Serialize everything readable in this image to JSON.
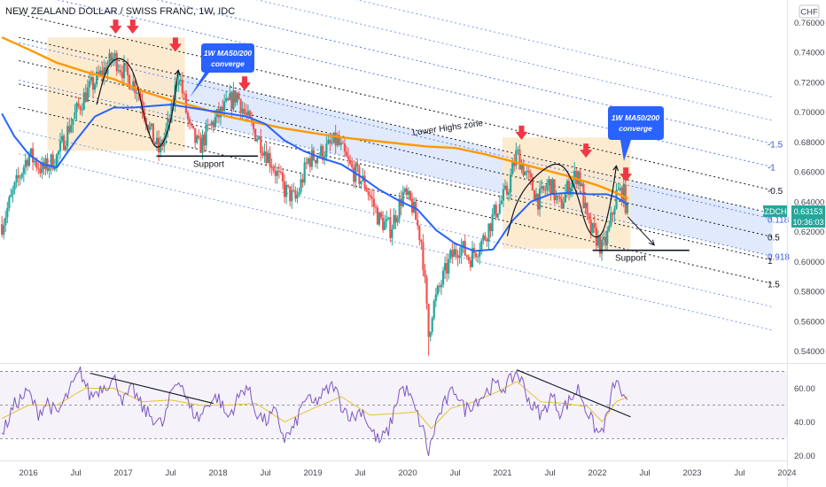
{
  "header": {
    "title": "NEW ZEALAND DOLLAR / SWISS FRANC, 1W, IDC",
    "currency": "CHF"
  },
  "price_badge": {
    "symbol": "NZDCHF",
    "price": "0.63153",
    "countdown": "10:36:03",
    "color": "#26a69a"
  },
  "colors": {
    "up_candle": "#26a69a",
    "down_candle": "#ef5350",
    "ma50": "#2962ff",
    "ma200": "#ff9800",
    "rsi_line": "#7e57c2",
    "rsi_signal": "#e5c32f",
    "arrow": "#f23645",
    "callout": "#2962ff",
    "channel_fill": "#dbe6fb",
    "zone_fill": "#fde7c8"
  },
  "annotations": {
    "callout_left": [
      "1W MA50/200",
      "converge"
    ],
    "callout_right": [
      "1W MA50/200",
      "converge"
    ],
    "support_left": "Support",
    "support_right": "Support",
    "lower_highs": "Lower Highs zone"
  },
  "chart_data": [
    {
      "type": "candlestick",
      "panel": "price",
      "title": "NEW ZEALAND DOLLAR / SWISS FRANC, 1W, IDC",
      "unit": "CHF",
      "ylim": [
        0.535,
        0.775
      ],
      "yticks": [
        "0.76000",
        "0.74000",
        "0.72000",
        "0.70000",
        "0.68000",
        "0.66000",
        "0.64000",
        "0.62000",
        "0.60000",
        "0.58000",
        "0.56000",
        "0.54000"
      ],
      "xlim": [
        2015.7,
        2024.0
      ],
      "xticks": [
        {
          "label": "2016",
          "x": 2016.0
        },
        {
          "label": "Jul",
          "x": 2016.5
        },
        {
          "label": "2017",
          "x": 2017.0
        },
        {
          "label": "Jul",
          "x": 2017.5
        },
        {
          "label": "2018",
          "x": 2018.0
        },
        {
          "label": "Jul",
          "x": 2018.5
        },
        {
          "label": "2019",
          "x": 2019.0
        },
        {
          "label": "Jul",
          "x": 2019.5
        },
        {
          "label": "2020",
          "x": 2020.0
        },
        {
          "label": "Jul",
          "x": 2020.5
        },
        {
          "label": "2021",
          "x": 2021.0
        },
        {
          "label": "Jul",
          "x": 2021.5
        },
        {
          "label": "2022",
          "x": 2022.0
        },
        {
          "label": "Jul",
          "x": 2022.5
        },
        {
          "label": "2023",
          "x": 2023.0
        },
        {
          "label": "Jul",
          "x": 2023.5
        },
        {
          "label": "2024",
          "x": 2024.0
        }
      ],
      "price_path": [
        [
          2015.72,
          0.625
        ],
        [
          2015.85,
          0.648
        ],
        [
          2016.0,
          0.672
        ],
        [
          2016.15,
          0.661
        ],
        [
          2016.3,
          0.67
        ],
        [
          2016.45,
          0.693
        ],
        [
          2016.6,
          0.712
        ],
        [
          2016.75,
          0.724
        ],
        [
          2016.9,
          0.737
        ],
        [
          2017.05,
          0.723
        ],
        [
          2017.15,
          0.716
        ],
        [
          2017.28,
          0.688
        ],
        [
          2017.38,
          0.673
        ],
        [
          2017.5,
          0.696
        ],
        [
          2017.58,
          0.728
        ],
        [
          2017.7,
          0.688
        ],
        [
          2017.8,
          0.676
        ],
        [
          2017.92,
          0.691
        ],
        [
          2018.05,
          0.701
        ],
        [
          2018.2,
          0.712
        ],
        [
          2018.3,
          0.696
        ],
        [
          2018.42,
          0.683
        ],
        [
          2018.55,
          0.668
        ],
        [
          2018.7,
          0.648
        ],
        [
          2018.82,
          0.641
        ],
        [
          2018.95,
          0.668
        ],
        [
          2019.1,
          0.673
        ],
        [
          2019.25,
          0.681
        ],
        [
          2019.4,
          0.662
        ],
        [
          2019.55,
          0.652
        ],
        [
          2019.7,
          0.628
        ],
        [
          2019.82,
          0.622
        ],
        [
          2019.95,
          0.645
        ],
        [
          2020.05,
          0.637
        ],
        [
          2020.15,
          0.612
        ],
        [
          2020.22,
          0.55
        ],
        [
          2020.26,
          0.568
        ],
        [
          2020.35,
          0.585
        ],
        [
          2020.45,
          0.602
        ],
        [
          2020.55,
          0.611
        ],
        [
          2020.65,
          0.602
        ],
        [
          2020.8,
          0.615
        ],
        [
          2020.92,
          0.633
        ],
        [
          2021.05,
          0.647
        ],
        [
          2021.15,
          0.673
        ],
        [
          2021.25,
          0.658
        ],
        [
          2021.38,
          0.641
        ],
        [
          2021.5,
          0.653
        ],
        [
          2021.6,
          0.636
        ],
        [
          2021.7,
          0.651
        ],
        [
          2021.8,
          0.66
        ],
        [
          2021.9,
          0.624
        ],
        [
          2022.0,
          0.615
        ],
        [
          2022.05,
          0.608
        ],
        [
          2022.12,
          0.62
        ],
        [
          2022.2,
          0.645
        ],
        [
          2022.27,
          0.647
        ],
        [
          2022.32,
          0.632
        ]
      ],
      "lows": [
        {
          "x": 2020.22,
          "y": 0.537
        }
      ],
      "ma50_path": [
        [
          2015.72,
          0.699
        ],
        [
          2015.85,
          0.684
        ],
        [
          2016.0,
          0.672
        ],
        [
          2016.15,
          0.665
        ],
        [
          2016.3,
          0.663
        ],
        [
          2016.5,
          0.681
        ],
        [
          2016.7,
          0.697
        ],
        [
          2016.9,
          0.703
        ],
        [
          2017.1,
          0.703
        ],
        [
          2017.3,
          0.704
        ],
        [
          2017.5,
          0.705
        ],
        [
          2017.7,
          0.703
        ],
        [
          2017.9,
          0.701
        ],
        [
          2018.1,
          0.699
        ],
        [
          2018.3,
          0.697
        ],
        [
          2018.5,
          0.692
        ],
        [
          2018.7,
          0.681
        ],
        [
          2018.9,
          0.674
        ],
        [
          2019.1,
          0.669
        ],
        [
          2019.3,
          0.665
        ],
        [
          2019.5,
          0.657
        ],
        [
          2019.7,
          0.648
        ],
        [
          2019.9,
          0.641
        ],
        [
          2020.1,
          0.635
        ],
        [
          2020.3,
          0.621
        ],
        [
          2020.5,
          0.612
        ],
        [
          2020.7,
          0.607
        ],
        [
          2020.9,
          0.608
        ],
        [
          2021.1,
          0.627
        ],
        [
          2021.3,
          0.64
        ],
        [
          2021.5,
          0.645
        ],
        [
          2021.7,
          0.646
        ],
        [
          2021.9,
          0.645
        ],
        [
          2022.1,
          0.645
        ],
        [
          2022.2,
          0.643
        ],
        [
          2022.32,
          0.638
        ]
      ],
      "ma200_path": [
        [
          2015.72,
          0.75
        ],
        [
          2016.0,
          0.742
        ],
        [
          2016.3,
          0.733
        ],
        [
          2016.6,
          0.727
        ],
        [
          2016.9,
          0.722
        ],
        [
          2017.2,
          0.714
        ],
        [
          2017.5,
          0.708
        ],
        [
          2017.8,
          0.703
        ],
        [
          2018.1,
          0.697
        ],
        [
          2018.4,
          0.693
        ],
        [
          2018.7,
          0.689
        ],
        [
          2019.0,
          0.686
        ],
        [
          2019.3,
          0.683
        ],
        [
          2019.6,
          0.681
        ],
        [
          2019.9,
          0.679
        ],
        [
          2020.2,
          0.677
        ],
        [
          2020.5,
          0.676
        ],
        [
          2020.8,
          0.672
        ],
        [
          2021.1,
          0.667
        ],
        [
          2021.4,
          0.662
        ],
        [
          2021.7,
          0.657
        ],
        [
          2022.0,
          0.651
        ],
        [
          2022.2,
          0.646
        ],
        [
          2022.32,
          0.642
        ]
      ],
      "fib_channel": {
        "anchor_x": [
          2015.9,
          2023.85
        ],
        "base_line": [
          0.75,
          0.632
        ],
        "spacing": 0.0312,
        "levels": [
          {
            "level": -2.5,
            "label": "",
            "color": "#7b9af2",
            "dash": "2,3"
          },
          {
            "level": -2.0,
            "label": "",
            "color": "#7b9af2",
            "dash": "2,3"
          },
          {
            "level": -1.5,
            "label": "-1.5",
            "color": "#5b7bea",
            "dash": "2,3"
          },
          {
            "level": -1.0,
            "label": "-1",
            "color": "#5b7bea",
            "dash": "2,3"
          },
          {
            "level": -0.5,
            "label": "-0.5",
            "color": "#131722",
            "dash": "2,3"
          },
          {
            "level": 0.0,
            "label": "0",
            "color": "#131722",
            "dash": "2,3"
          },
          {
            "level": 0.118,
            "label": "0.118",
            "color": "#5b7bea",
            "dash": "2,3"
          },
          {
            "level": 0.5,
            "label": "0.5",
            "color": "#131722",
            "dash": "2,3"
          },
          {
            "level": 0.918,
            "label": "0.918",
            "color": "#5b7bea",
            "dash": "2,3"
          },
          {
            "level": 1.0,
            "label": "1",
            "color": "#131722",
            "dash": "2,3"
          },
          {
            "level": 1.5,
            "label": "1.5",
            "color": "#131722",
            "dash": "2,3"
          },
          {
            "level": 2.0,
            "label": "",
            "color": "#7b9af2",
            "dash": "2,3"
          },
          {
            "level": 2.5,
            "label": "",
            "color": "#7b9af2",
            "dash": "2,3"
          }
        ],
        "fill_from": 0.0,
        "fill_to": 0.918
      },
      "zones": [
        {
          "x": [
            2016.2,
            2017.65
          ],
          "y": [
            0.674,
            0.75
          ]
        },
        {
          "x": [
            2021.0,
            2022.35
          ],
          "y": [
            0.6085,
            0.683
          ]
        }
      ],
      "support_lines": [
        {
          "x": [
            2017.35,
            2018.42
          ],
          "y": 0.6705,
          "label_x": 2017.9
        },
        {
          "x": [
            2021.95,
            2022.97
          ],
          "y": 0.6075,
          "label_x": 2022.35
        }
      ],
      "red_arrows": [
        [
          2016.92,
          0.756
        ],
        [
          2017.1,
          0.756
        ],
        [
          2017.55,
          0.744
        ],
        [
          2018.28,
          0.718
        ],
        [
          2021.2,
          0.685
        ],
        [
          2021.88,
          0.673
        ],
        [
          2022.3,
          0.657
        ]
      ],
      "arcs": [
        [
          [
            2016.72,
            0.705
          ],
          [
            2016.82,
            0.73
          ],
          [
            2016.96,
            0.738
          ],
          [
            2017.12,
            0.728
          ],
          [
            2017.24,
            0.69
          ],
          [
            2017.36,
            0.672
          ],
          [
            2017.5,
            0.69
          ],
          [
            2017.58,
            0.728
          ]
        ],
        [
          [
            2021.05,
            0.617
          ],
          [
            2021.15,
            0.642
          ],
          [
            2021.38,
            0.66
          ],
          [
            2021.62,
            0.668
          ],
          [
            2021.78,
            0.648
          ],
          [
            2021.9,
            0.618
          ],
          [
            2022.05,
            0.615
          ],
          [
            2022.15,
            0.642
          ],
          [
            2022.2,
            0.664
          ]
        ]
      ],
      "projection": {
        "from": [
          2022.32,
          0.63
        ],
        "to": [
          2022.6,
          0.611
        ]
      }
    },
    {
      "type": "line",
      "panel": "rsi",
      "ylim": [
        17,
        74
      ],
      "yticks": [
        "60.00",
        "40.00",
        "20.00"
      ],
      "bands": {
        "upper": 70,
        "mid": 50,
        "lower": 30
      },
      "rsi_path": [
        [
          2015.72,
          32
        ],
        [
          2015.85,
          50
        ],
        [
          2016.0,
          58
        ],
        [
          2016.1,
          45
        ],
        [
          2016.2,
          52
        ],
        [
          2016.3,
          44
        ],
        [
          2016.45,
          60
        ],
        [
          2016.55,
          70
        ],
        [
          2016.65,
          55
        ],
        [
          2016.8,
          62
        ],
        [
          2016.92,
          65
        ],
        [
          2017.0,
          52
        ],
        [
          2017.1,
          60
        ],
        [
          2017.2,
          48
        ],
        [
          2017.3,
          43
        ],
        [
          2017.42,
          38
        ],
        [
          2017.52,
          60
        ],
        [
          2017.6,
          66
        ],
        [
          2017.7,
          48
        ],
        [
          2017.8,
          42
        ],
        [
          2017.9,
          52
        ],
        [
          2018.0,
          55
        ],
        [
          2018.1,
          42
        ],
        [
          2018.22,
          55
        ],
        [
          2018.3,
          62
        ],
        [
          2018.4,
          46
        ],
        [
          2018.5,
          40
        ],
        [
          2018.6,
          46
        ],
        [
          2018.7,
          30
        ],
        [
          2018.8,
          36
        ],
        [
          2018.92,
          55
        ],
        [
          2019.0,
          50
        ],
        [
          2019.1,
          56
        ],
        [
          2019.22,
          62
        ],
        [
          2019.3,
          50
        ],
        [
          2019.42,
          42
        ],
        [
          2019.52,
          48
        ],
        [
          2019.6,
          36
        ],
        [
          2019.7,
          28
        ],
        [
          2019.8,
          35
        ],
        [
          2019.92,
          60
        ],
        [
          2020.0,
          58
        ],
        [
          2020.1,
          44
        ],
        [
          2020.18,
          32
        ],
        [
          2020.22,
          21
        ],
        [
          2020.3,
          40
        ],
        [
          2020.4,
          52
        ],
        [
          2020.5,
          60
        ],
        [
          2020.6,
          47
        ],
        [
          2020.7,
          52
        ],
        [
          2020.8,
          56
        ],
        [
          2020.9,
          62
        ],
        [
          2021.0,
          60
        ],
        [
          2021.08,
          64
        ],
        [
          2021.15,
          70
        ],
        [
          2021.22,
          62
        ],
        [
          2021.3,
          50
        ],
        [
          2021.42,
          44
        ],
        [
          2021.52,
          56
        ],
        [
          2021.6,
          46
        ],
        [
          2021.7,
          52
        ],
        [
          2021.8,
          60
        ],
        [
          2021.88,
          48
        ],
        [
          2021.96,
          38
        ],
        [
          2022.02,
          32
        ],
        [
          2022.1,
          42
        ],
        [
          2022.18,
          64
        ],
        [
          2022.24,
          60
        ],
        [
          2022.3,
          50
        ]
      ],
      "signal_path": [
        [
          2015.72,
          42
        ],
        [
          2016.0,
          50
        ],
        [
          2016.3,
          50
        ],
        [
          2016.6,
          60
        ],
        [
          2016.9,
          60
        ],
        [
          2017.2,
          52
        ],
        [
          2017.5,
          53
        ],
        [
          2017.8,
          50
        ],
        [
          2018.1,
          50
        ],
        [
          2018.4,
          51
        ],
        [
          2018.7,
          40
        ],
        [
          2019.0,
          48
        ],
        [
          2019.3,
          55
        ],
        [
          2019.6,
          44
        ],
        [
          2019.9,
          45
        ],
        [
          2020.1,
          46
        ],
        [
          2020.25,
          36
        ],
        [
          2020.45,
          48
        ],
        [
          2020.7,
          52
        ],
        [
          2020.95,
          58
        ],
        [
          2021.15,
          64
        ],
        [
          2021.4,
          52
        ],
        [
          2021.65,
          51
        ],
        [
          2021.9,
          49
        ],
        [
          2022.05,
          40
        ],
        [
          2022.2,
          52
        ],
        [
          2022.32,
          55
        ]
      ],
      "trendlines": [
        {
          "from": [
            2016.65,
            69
          ],
          "to": [
            2017.95,
            51
          ]
        },
        {
          "from": [
            2021.15,
            71
          ],
          "to": [
            2022.35,
            43
          ]
        }
      ]
    }
  ]
}
